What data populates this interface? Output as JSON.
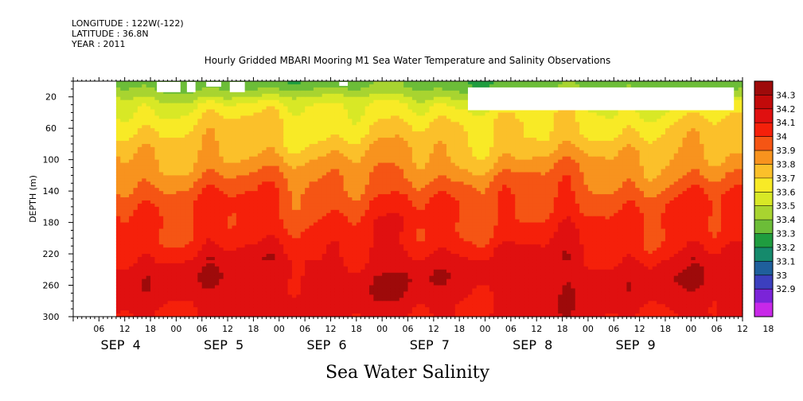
{
  "header": {
    "longitude": "LONGITUDE : 122W(-122)",
    "latitude": "LATITUDE : 36.8N",
    "year": "YEAR : 2011"
  },
  "chart_data": {
    "type": "heatmap",
    "title": "Hourly Gridded MBARI Mooring M1 Sea Water Temperature and Salinity Observations",
    "subtitle": "Sea Water Salinity",
    "ylabel": "DEPTH (m)",
    "ylim": [
      0,
      300
    ],
    "y_reversed": true,
    "y_ticks": [
      20,
      60,
      100,
      140,
      180,
      220,
      260,
      300
    ],
    "x_hour_ticks": [
      "06",
      "12",
      "18",
      "00",
      "06",
      "12",
      "18",
      "00",
      "06",
      "12",
      "18",
      "00",
      "06",
      "12",
      "18",
      "00",
      "06",
      "12",
      "18",
      "00",
      "06",
      "12",
      "18",
      "00",
      "06",
      "12",
      "18"
    ],
    "x_day_labels": [
      "SEP  4",
      "SEP  5",
      "SEP  6",
      "SEP  7",
      "SEP  8",
      "SEP  9"
    ],
    "x_range_hours": [
      0,
      156
    ],
    "data_start_hour": 10,
    "colorbar": {
      "levels": [
        34.3,
        34.2,
        34.1,
        34.0,
        33.9,
        33.8,
        33.7,
        33.6,
        33.5,
        33.4,
        33.3,
        33.2,
        33.1,
        33.0,
        32.9
      ],
      "colors": [
        "#9e0a0a",
        "#c20a0a",
        "#e01010",
        "#f5200a",
        "#f55514",
        "#f8931e",
        "#fbc02a",
        "#f8ea26",
        "#d8e826",
        "#a8d430",
        "#6cbd38",
        "#1f9c3f",
        "#158a6c",
        "#1f5f9c",
        "#3c3fbe",
        "#7b24d8",
        "#c828e8"
      ]
    },
    "profile_depths_m": [
      5,
      15,
      30,
      50,
      70,
      90,
      110,
      130,
      150,
      175,
      200,
      225,
      250,
      275,
      300
    ],
    "profile_salinity": [
      33.45,
      33.55,
      33.7,
      33.78,
      33.82,
      33.88,
      33.95,
      34.02,
      34.08,
      34.12,
      34.15,
      34.22,
      34.27,
      34.25,
      34.22
    ],
    "missing_blocks": [
      {
        "t0": 19.5,
        "t1": 25,
        "d0": 1,
        "d1": 14
      },
      {
        "t0": 26.5,
        "t1": 28.5,
        "d0": 1,
        "d1": 14
      },
      {
        "t0": 31,
        "t1": 34.5,
        "d0": 1,
        "d1": 7
      },
      {
        "t0": 36.5,
        "t1": 40,
        "d0": 1,
        "d1": 14
      },
      {
        "t0": 62,
        "t1": 64,
        "d0": 1,
        "d1": 6
      },
      {
        "t0": 92,
        "t1": 154,
        "d0": 8,
        "d1": 37
      }
    ]
  }
}
